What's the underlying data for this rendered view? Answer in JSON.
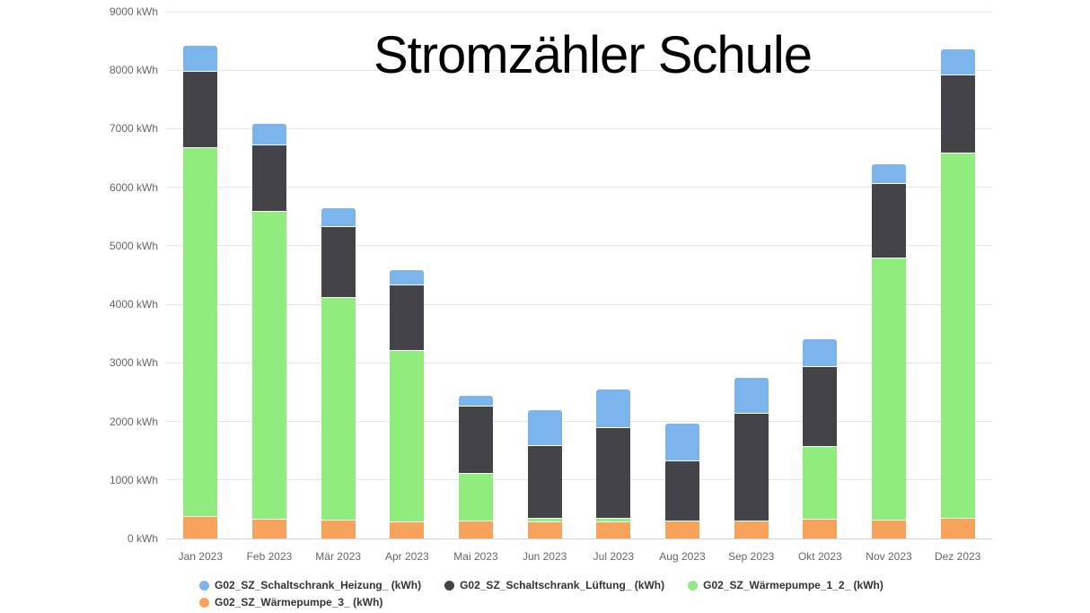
{
  "chart_data": {
    "type": "bar",
    "stacked": true,
    "title": "Stromzähler Schule",
    "y_unit": "kWh",
    "ylim": [
      0,
      9000
    ],
    "yticks": [
      0,
      1000,
      2000,
      3000,
      4000,
      5000,
      6000,
      7000,
      8000,
      9000
    ],
    "ytick_labels": [
      "0 kWh",
      "1000 kWh",
      "2000 kWh",
      "3000 kWh",
      "4000 kWh",
      "5000 kWh",
      "6000 kWh",
      "7000 kWh",
      "8000 kWh",
      "9000 kWh"
    ],
    "grid": true,
    "legend_position": "bottom",
    "categories": [
      "Jan 2023",
      "Feb 2023",
      "Mär 2023",
      "Apr 2023",
      "Mai 2023",
      "Jun 2023",
      "Jul 2023",
      "Aug 2023",
      "Sep 2023",
      "Okt 2023",
      "Nov 2023",
      "Dez 2023"
    ],
    "series": [
      {
        "name": "G02_SZ_Schaltschrank_Heizung_ (kWh)",
        "color": "#7cb5ec",
        "values": [
          430,
          360,
          310,
          250,
          170,
          600,
          640,
          630,
          590,
          450,
          320,
          420
        ]
      },
      {
        "name": "G02_SZ_Schaltschrank_Lüftung_ (kWh)",
        "color": "#434348",
        "values": [
          1310,
          1140,
          1210,
          1120,
          1150,
          1230,
          1540,
          1020,
          1840,
          1370,
          1270,
          1340
        ]
      },
      {
        "name": "G02_SZ_Wärmepumpe_1_2_ (kWh)",
        "color": "#90ed7d",
        "values": [
          6300,
          5250,
          3800,
          2930,
          820,
          70,
          70,
          0,
          0,
          1250,
          4480,
          6240
        ]
      },
      {
        "name": "G02_SZ_Wärmepumpe_3_ (kWh)",
        "color": "#f7a35c",
        "values": [
          380,
          340,
          320,
          290,
          300,
          290,
          290,
          310,
          310,
          330,
          320,
          350
        ]
      }
    ],
    "stack_order_bottom_to_top": [
      3,
      2,
      1,
      0
    ],
    "totals": [
      8420,
      7090,
      5640,
      4590,
      2440,
      2190,
      2540,
      1960,
      2740,
      3400,
      6390,
      8350
    ]
  },
  "style": {
    "grid_color": "#e6e6e6",
    "axis_line_color": "#ccd6eb",
    "axis_text_color": "#666666",
    "legend_text_color": "#333333",
    "background": "#ffffff"
  }
}
